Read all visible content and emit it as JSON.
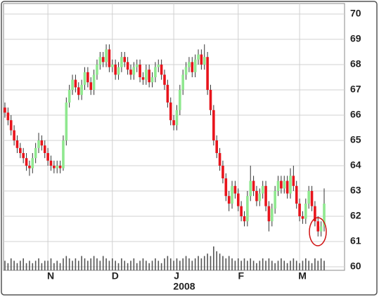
{
  "chart_data": {
    "type": "candlestick",
    "categories": [
      null,
      null,
      null,
      null,
      null,
      null,
      null,
      null,
      null,
      null,
      null,
      null,
      null,
      null,
      "N",
      null,
      null,
      null,
      null,
      null,
      null,
      null,
      null,
      null,
      null,
      null,
      null,
      null,
      null,
      null,
      null,
      null,
      null,
      null,
      null,
      "D",
      null,
      null,
      null,
      null,
      null,
      null,
      null,
      null,
      null,
      null,
      null,
      null,
      null,
      null,
      null,
      null,
      null,
      null,
      null,
      "J",
      null,
      null,
      null,
      null,
      null,
      null,
      null,
      null,
      null,
      null,
      null,
      null,
      null,
      null,
      null,
      null,
      null,
      null,
      null,
      null,
      "F",
      null,
      null,
      null,
      null,
      null,
      null,
      null,
      null,
      null,
      null,
      null,
      null,
      null,
      null,
      null,
      null,
      null,
      null,
      null,
      "M",
      null,
      null,
      null,
      null,
      null,
      null,
      null,
      null
    ],
    "year_label": "2008",
    "open": [
      66.3,
      66.1,
      65.8,
      65.4,
      65.0,
      64.7,
      64.5,
      64.3,
      64.0,
      63.9,
      64.3,
      64.7,
      65.0,
      64.8,
      64.5,
      64.2,
      64.0,
      63.9,
      64.0,
      63.9,
      65.0,
      66.5,
      67.0,
      67.4,
      67.1,
      66.8,
      67.2,
      67.7,
      67.3,
      67.0,
      67.6,
      68.0,
      68.3,
      68.1,
      68.6,
      67.9,
      68.0,
      67.6,
      67.9,
      68.3,
      68.1,
      67.8,
      67.6,
      67.9,
      68.0,
      67.5,
      67.4,
      67.8,
      67.3,
      67.5,
      67.9,
      68.0,
      67.6,
      67.2,
      66.5,
      65.8,
      65.6,
      66.2,
      67.0,
      67.6,
      67.9,
      68.1,
      67.7,
      68.2,
      68.4,
      68.0,
      68.3,
      67.0,
      66.2,
      65.0,
      64.5,
      64.0,
      63.5,
      62.8,
      62.5,
      63.2,
      62.9,
      62.4,
      62.0,
      61.8,
      62.8,
      63.4,
      63.0,
      62.6,
      62.9,
      63.2,
      62.4,
      61.8,
      62.3,
      63.0,
      63.4,
      63.1,
      63.4,
      62.9,
      63.6,
      63.2,
      62.5,
      62.0,
      61.9,
      62.5,
      63.0,
      62.4,
      61.8,
      61.4,
      61.6
    ],
    "high": [
      66.5,
      66.3,
      66.0,
      65.6,
      65.2,
      64.9,
      64.7,
      64.5,
      64.2,
      64.5,
      64.9,
      65.3,
      65.2,
      65.0,
      64.7,
      64.4,
      64.2,
      64.2,
      64.2,
      65.2,
      66.7,
      67.2,
      67.6,
      67.6,
      67.3,
      67.4,
      67.9,
      67.9,
      67.5,
      67.8,
      68.2,
      68.5,
      68.5,
      68.8,
      68.8,
      68.2,
      68.2,
      68.1,
      68.5,
      68.5,
      68.3,
      68.0,
      68.1,
      68.2,
      68.2,
      67.7,
      68.0,
      68.0,
      67.7,
      68.1,
      68.2,
      68.2,
      67.8,
      67.4,
      66.7,
      66.0,
      66.4,
      67.2,
      67.8,
      68.1,
      68.3,
      68.3,
      68.4,
      68.6,
      68.6,
      68.8,
      68.5,
      67.2,
      66.4,
      65.2,
      64.7,
      64.2,
      63.7,
      63.0,
      63.4,
      63.4,
      63.1,
      62.6,
      62.2,
      63.0,
      64.0,
      63.6,
      63.2,
      63.1,
      63.4,
      63.4,
      62.6,
      62.5,
      63.2,
      63.6,
      63.6,
      63.6,
      63.6,
      63.9,
      64.0,
      63.4,
      62.7,
      62.2,
      62.7,
      63.2,
      63.2,
      62.6,
      62.0,
      61.8,
      63.1
    ],
    "low": [
      65.9,
      65.6,
      65.2,
      64.8,
      64.5,
      64.3,
      64.1,
      63.8,
      63.6,
      63.7,
      64.1,
      64.5,
      64.6,
      64.3,
      64.0,
      63.8,
      63.7,
      63.7,
      63.7,
      63.8,
      64.8,
      66.3,
      66.8,
      66.9,
      66.6,
      66.6,
      67.0,
      67.1,
      66.8,
      66.8,
      67.4,
      67.8,
      67.9,
      67.9,
      67.7,
      67.7,
      67.4,
      67.4,
      67.7,
      67.9,
      67.6,
      67.4,
      67.4,
      67.7,
      67.3,
      67.2,
      67.2,
      67.1,
      67.1,
      67.3,
      67.7,
      67.4,
      67.0,
      66.3,
      65.6,
      65.4,
      65.4,
      66.0,
      66.8,
      67.4,
      67.7,
      67.5,
      67.5,
      68.0,
      67.8,
      67.8,
      66.8,
      66.0,
      64.8,
      64.3,
      63.8,
      63.3,
      62.6,
      62.2,
      62.3,
      62.7,
      62.2,
      61.8,
      61.6,
      61.6,
      62.6,
      62.8,
      62.4,
      62.4,
      62.7,
      62.2,
      61.4,
      61.6,
      62.1,
      62.8,
      62.9,
      62.9,
      62.7,
      62.7,
      63.0,
      62.3,
      61.8,
      61.7,
      61.7,
      62.3,
      62.2,
      61.6,
      61.2,
      61.2,
      61.4
    ],
    "close": [
      66.1,
      65.8,
      65.4,
      65.0,
      64.7,
      64.5,
      64.3,
      64.0,
      63.9,
      64.3,
      64.7,
      65.0,
      64.8,
      64.5,
      64.2,
      64.0,
      63.9,
      64.0,
      63.9,
      65.0,
      66.5,
      67.0,
      67.4,
      67.1,
      66.8,
      67.2,
      67.7,
      67.3,
      67.0,
      67.6,
      68.0,
      68.3,
      68.1,
      68.6,
      67.9,
      68.0,
      67.6,
      67.9,
      68.3,
      68.1,
      67.8,
      67.6,
      67.9,
      68.0,
      67.5,
      67.4,
      67.8,
      67.3,
      67.5,
      67.9,
      68.0,
      67.6,
      67.2,
      66.5,
      65.8,
      65.6,
      66.2,
      67.0,
      67.6,
      67.9,
      68.1,
      67.7,
      68.2,
      68.4,
      68.0,
      68.3,
      67.0,
      66.2,
      65.0,
      64.5,
      64.0,
      63.5,
      62.8,
      62.5,
      63.2,
      62.9,
      62.4,
      62.0,
      61.8,
      62.8,
      63.4,
      63.0,
      62.6,
      62.9,
      63.2,
      62.4,
      61.8,
      62.3,
      63.0,
      63.4,
      63.1,
      63.4,
      62.9,
      63.6,
      63.2,
      62.5,
      62.0,
      61.9,
      62.5,
      63.0,
      62.4,
      61.8,
      61.4,
      61.6,
      62.5
    ],
    "volume": [
      4,
      3,
      5,
      4,
      3,
      4,
      5,
      3,
      4,
      3,
      4,
      5,
      3,
      4,
      4,
      5,
      3,
      4,
      3,
      5,
      6,
      5,
      4,
      5,
      4,
      6,
      5,
      4,
      5,
      6,
      5,
      4,
      6,
      5,
      4,
      5,
      4,
      3,
      5,
      4,
      3,
      4,
      5,
      3,
      4,
      5,
      4,
      3,
      4,
      5,
      4,
      3,
      5,
      6,
      5,
      4,
      5,
      4,
      5,
      6,
      5,
      4,
      5,
      6,
      5,
      6,
      7,
      6,
      10,
      8,
      7,
      6,
      5,
      6,
      5,
      4,
      5,
      4,
      5,
      4,
      5,
      4,
      3,
      4,
      5,
      4,
      5,
      4,
      3,
      4,
      5,
      4,
      3,
      4,
      5,
      4,
      3,
      4,
      5,
      4,
      3,
      5,
      4,
      5,
      4
    ],
    "up_color": "#8fe88f",
    "down_color": "#e8141c",
    "volume_color": "#555555",
    "ylim": [
      60,
      70
    ],
    "yticks": [
      60,
      61,
      62,
      63,
      64,
      65,
      66,
      67,
      68,
      69,
      70
    ],
    "grid": true
  }
}
